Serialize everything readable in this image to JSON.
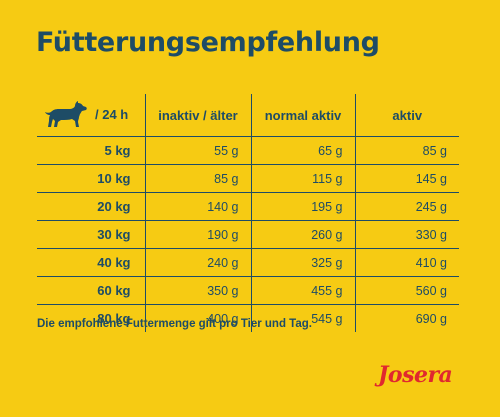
{
  "title": "Fütterungsempfehlung",
  "table": {
    "header_unit": "/ 24 h",
    "columns": [
      "inaktiv / älter",
      "normal aktiv",
      "aktiv"
    ],
    "rows": [
      {
        "weight": "5 kg",
        "values": [
          "55 g",
          "65 g",
          "85 g"
        ]
      },
      {
        "weight": "10 kg",
        "values": [
          "85 g",
          "115 g",
          "145 g"
        ]
      },
      {
        "weight": "20 kg",
        "values": [
          "140 g",
          "195 g",
          "245 g"
        ]
      },
      {
        "weight": "30 kg",
        "values": [
          "190 g",
          "260 g",
          "330 g"
        ]
      },
      {
        "weight": "40 kg",
        "values": [
          "240 g",
          "325 g",
          "410 g"
        ]
      },
      {
        "weight": "60 kg",
        "values": [
          "350 g",
          "455 g",
          "560 g"
        ]
      },
      {
        "weight": "80 kg",
        "values": [
          "400 g",
          "545 g",
          "690 g"
        ]
      }
    ]
  },
  "note": "Die empfohlene Futtermenge gilt pro Tier und Tag.",
  "brand": "Josera",
  "icons": {
    "dog": "dog-icon"
  },
  "colors": {
    "background": "#f6cb13",
    "text": "#1e4c66",
    "brand": "#e0282f"
  }
}
